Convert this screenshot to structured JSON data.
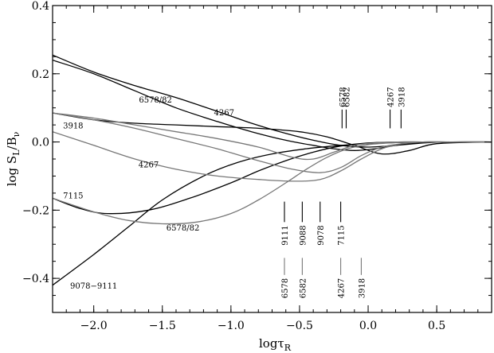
{
  "chart_data": {
    "type": "line",
    "xlabel": "logτ",
    "xlabel_sub": "R",
    "ylabel": "log S",
    "ylabel_sub": "L",
    "ylabel_tail": "/B",
    "ylabel_tail_sub": "ν",
    "xlim": [
      -2.3,
      0.9
    ],
    "ylim": [
      -0.5,
      0.4
    ],
    "xticks": [
      -2.0,
      -1.5,
      -1.0,
      -0.5,
      0.0,
      0.5
    ],
    "xtick_labels": [
      "−2.0",
      "−1.5",
      "−1.0",
      "−0.5",
      "0.0",
      "0.5"
    ],
    "yticks": [
      -0.4,
      -0.2,
      0.0,
      0.2,
      0.4
    ],
    "ytick_labels": [
      "−0.4",
      "−0.2",
      "0.0",
      "0.2",
      "0.4"
    ],
    "grid": false,
    "series": [
      {
        "color": "#000000",
        "x": [
          -2.3,
          -2.0,
          -1.7,
          -1.4,
          -1.1,
          -0.85,
          -0.6,
          -0.4,
          -0.2,
          0.0,
          0.2,
          0.4,
          0.6,
          0.9
        ],
        "y": [
          0.255,
          0.205,
          0.165,
          0.13,
          0.09,
          0.055,
          0.025,
          0.005,
          -0.01,
          -0.015,
          -0.01,
          -0.003,
          0.0,
          0.0
        ]
      },
      {
        "color": "#000000",
        "x": [
          -2.3,
          -2.0,
          -1.7,
          -1.4,
          -1.1,
          -0.85,
          -0.6,
          -0.4,
          -0.25,
          -0.1,
          0.05,
          0.2,
          0.35,
          0.55,
          0.9
        ],
        "y": [
          0.24,
          0.2,
          0.15,
          0.1,
          0.06,
          0.03,
          0.005,
          -0.01,
          -0.02,
          -0.025,
          -0.02,
          -0.01,
          -0.003,
          0.0,
          0.0
        ]
      },
      {
        "color": "#000000",
        "x": [
          -2.3,
          -2.0,
          -1.7,
          -1.4,
          -1.1,
          -0.8,
          -0.5,
          -0.3,
          -0.1,
          0.1,
          0.3,
          0.5,
          0.9
        ],
        "y": [
          0.085,
          0.065,
          0.055,
          0.05,
          0.045,
          0.04,
          0.03,
          0.015,
          -0.01,
          -0.035,
          -0.025,
          -0.005,
          0.0
        ]
      },
      {
        "color": "#000000",
        "x": [
          -2.3,
          -2.1,
          -1.9,
          -1.6,
          -1.3,
          -1.0,
          -0.8,
          -0.6,
          -0.4,
          -0.2,
          0.0,
          0.2,
          0.4,
          0.6,
          0.9
        ],
        "y": [
          -0.165,
          -0.195,
          -0.21,
          -0.2,
          -0.165,
          -0.12,
          -0.085,
          -0.055,
          -0.03,
          -0.012,
          -0.003,
          0.0,
          0.0,
          0.0,
          0.0
        ]
      },
      {
        "color": "#000000",
        "x": [
          -2.3,
          -2.0,
          -1.75,
          -1.5,
          -1.2,
          -0.95,
          -0.7,
          -0.45,
          -0.2,
          0.0,
          0.2,
          0.4,
          0.6,
          0.9
        ],
        "y": [
          -0.42,
          -0.33,
          -0.25,
          -0.17,
          -0.1,
          -0.06,
          -0.035,
          -0.02,
          -0.01,
          -0.005,
          -0.002,
          0.0,
          0.0,
          0.0
        ]
      },
      {
        "color": "#777777",
        "x": [
          -2.3,
          -2.0,
          -1.7,
          -1.4,
          -1.1,
          -0.8,
          -0.55,
          -0.35,
          -0.2,
          -0.05,
          0.1,
          0.25,
          0.4,
          0.55,
          0.9
        ],
        "y": [
          0.085,
          0.065,
          0.04,
          0.01,
          -0.02,
          -0.055,
          -0.08,
          -0.09,
          -0.075,
          -0.04,
          -0.015,
          -0.005,
          0.0,
          0.0,
          0.0
        ]
      },
      {
        "color": "#777777",
        "x": [
          -2.3,
          -2.0,
          -1.7,
          -1.4,
          -1.1,
          -0.8,
          -0.55,
          -0.35,
          -0.2,
          -0.05,
          0.1,
          0.25,
          0.4,
          0.6,
          0.9
        ],
        "y": [
          0.03,
          -0.01,
          -0.05,
          -0.08,
          -0.1,
          -0.11,
          -0.115,
          -0.11,
          -0.085,
          -0.05,
          -0.02,
          -0.005,
          0.0,
          0.0,
          0.0
        ]
      },
      {
        "color": "#777777",
        "x": [
          -2.3,
          -2.0,
          -1.75,
          -1.5,
          -1.25,
          -1.0,
          -0.8,
          -0.6,
          -0.45,
          -0.3,
          -0.15,
          0.0,
          0.2,
          0.4,
          0.6,
          0.9
        ],
        "y": [
          -0.165,
          -0.205,
          -0.23,
          -0.24,
          -0.235,
          -0.21,
          -0.17,
          -0.12,
          -0.08,
          -0.045,
          -0.02,
          -0.008,
          -0.002,
          0.0,
          0.0,
          0.0
        ]
      },
      {
        "color": "#777777",
        "x": [
          -2.3,
          -2.0,
          -1.7,
          -1.4,
          -1.1,
          -0.8,
          -0.55,
          -0.4,
          -0.25,
          -0.1,
          0.05,
          0.2,
          0.4,
          0.6,
          0.9
        ],
        "y": [
          0.085,
          0.07,
          0.05,
          0.03,
          0.01,
          -0.015,
          -0.045,
          -0.05,
          -0.03,
          -0.01,
          -0.003,
          0.0,
          0.0,
          0.0,
          0.0
        ]
      }
    ],
    "curve_labels": [
      {
        "text": "6578/82",
        "x": -1.55,
        "y": 0.115
      },
      {
        "text": "4267",
        "x": -1.05,
        "y": 0.078
      },
      {
        "text": "3918",
        "x": -2.15,
        "y": 0.04
      },
      {
        "text": "4267",
        "x": -1.6,
        "y": -0.075
      },
      {
        "text": "7115",
        "x": -2.15,
        "y": -0.165
      },
      {
        "text": "6578/82",
        "x": -1.35,
        "y": -0.26
      },
      {
        "text": "9078−9111",
        "x": -2.0,
        "y": -0.43
      }
    ],
    "markers": [
      {
        "text": "6578",
        "x": -0.19,
        "y_from": 0.04,
        "y_to": 0.095,
        "color": "#000000",
        "label_pos": "above"
      },
      {
        "text": "6582",
        "x": -0.16,
        "y_from": 0.04,
        "y_to": 0.095,
        "color": "#000000",
        "label_pos": "above"
      },
      {
        "text": "4267",
        "x": 0.16,
        "y_from": 0.04,
        "y_to": 0.095,
        "color": "#000000",
        "label_pos": "above"
      },
      {
        "text": "3918",
        "x": 0.24,
        "y_from": 0.04,
        "y_to": 0.095,
        "color": "#000000",
        "label_pos": "above"
      },
      {
        "text": "9111",
        "x": -0.61,
        "y_from": -0.235,
        "y_to": -0.175,
        "color": "#000000",
        "label_pos": "below"
      },
      {
        "text": "9088",
        "x": -0.48,
        "y_from": -0.235,
        "y_to": -0.175,
        "color": "#000000",
        "label_pos": "below"
      },
      {
        "text": "9078",
        "x": -0.35,
        "y_from": -0.235,
        "y_to": -0.175,
        "color": "#000000",
        "label_pos": "below"
      },
      {
        "text": "7115",
        "x": -0.2,
        "y_from": -0.235,
        "y_to": -0.175,
        "color": "#000000",
        "label_pos": "below"
      },
      {
        "text": "6578",
        "x": -0.61,
        "y_from": -0.39,
        "y_to": -0.34,
        "color": "#777777",
        "label_pos": "below"
      },
      {
        "text": "6582",
        "x": -0.48,
        "y_from": -0.39,
        "y_to": -0.34,
        "color": "#777777",
        "label_pos": "below"
      },
      {
        "text": "4267",
        "x": -0.2,
        "y_from": -0.39,
        "y_to": -0.34,
        "color": "#777777",
        "label_pos": "below"
      },
      {
        "text": "3918",
        "x": -0.05,
        "y_from": -0.39,
        "y_to": -0.34,
        "color": "#777777",
        "label_pos": "below"
      }
    ]
  }
}
